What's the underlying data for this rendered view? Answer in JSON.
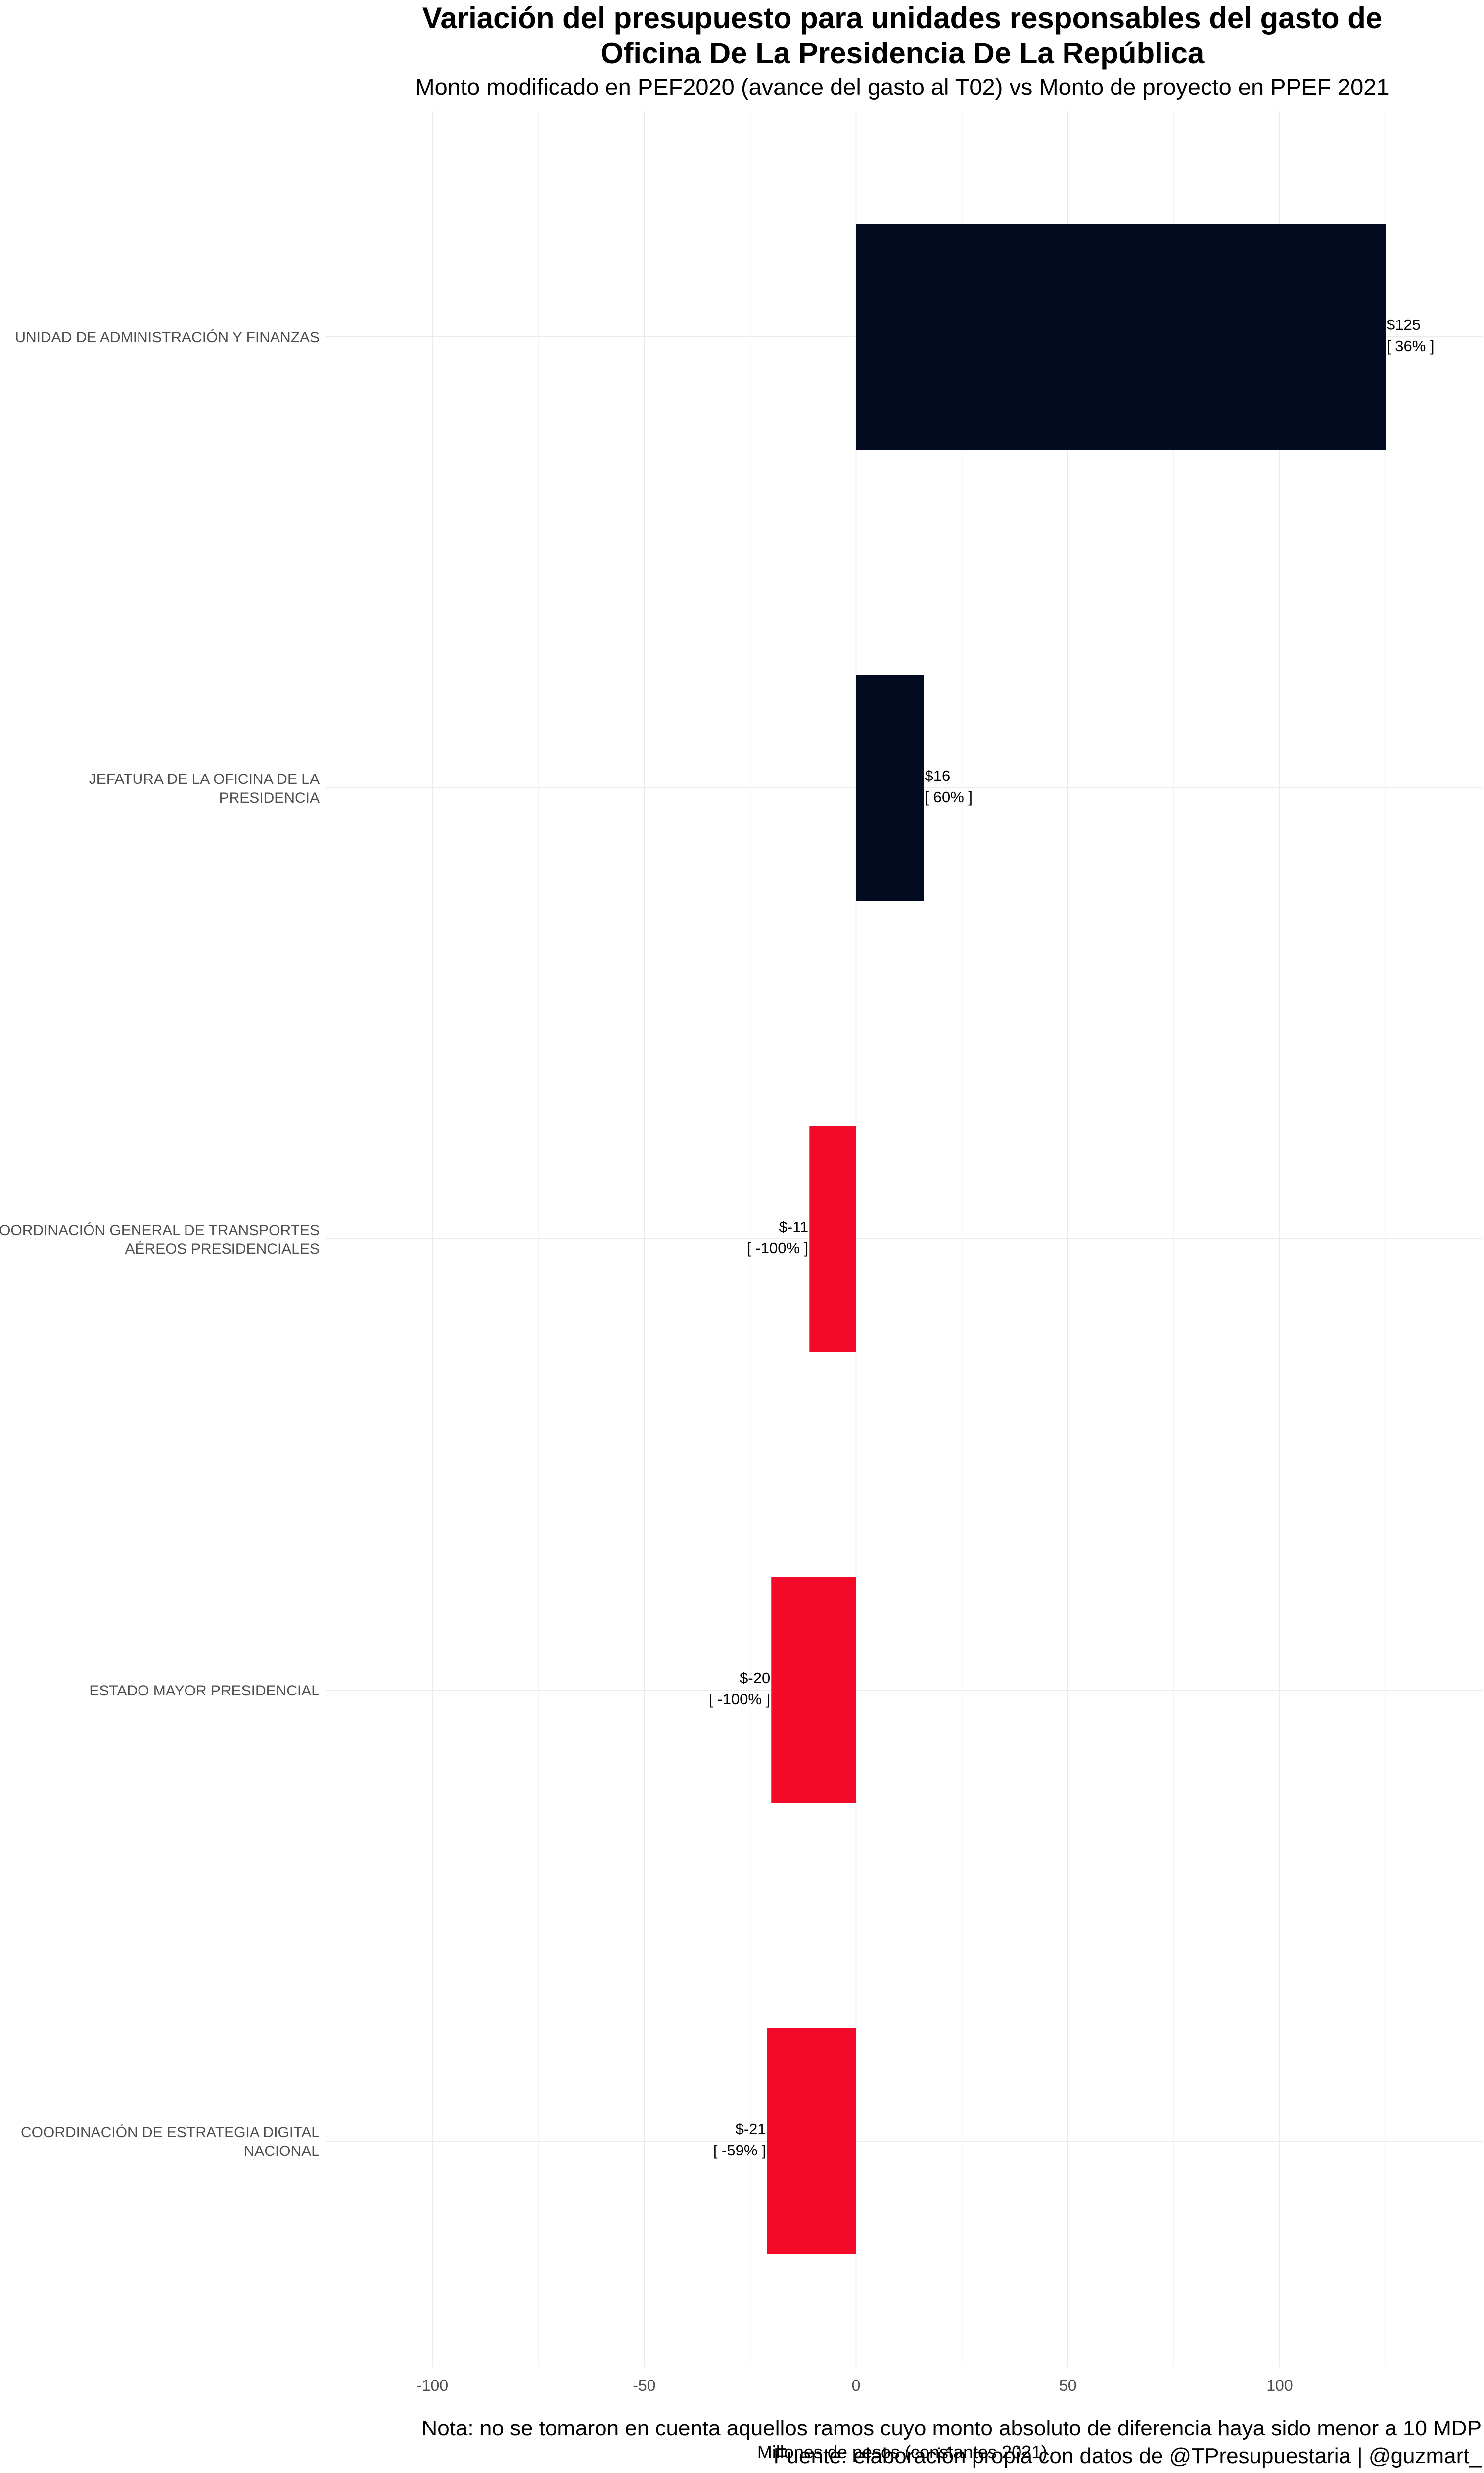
{
  "chart_data": {
    "type": "bar",
    "orientation": "horizontal",
    "title_lines": [
      "Variación del presupuesto para unidades responsables del gasto de",
      "Oficina De La Presidencia De La República"
    ],
    "subtitle": "Monto modificado en PEF2020 (avance del gasto al T02) vs Monto de proyecto en PPEF 2021",
    "xlabel": "Millones de pesos (constantes 2021)",
    "ylabel": "",
    "xlim": [
      -125,
      148
    ],
    "x_ticks": [
      -100,
      -50,
      0,
      50,
      100
    ],
    "x_tick_labels": [
      "-100",
      "-50",
      "0",
      "50",
      "100"
    ],
    "grid": true,
    "legend": "none",
    "categories": [
      [
        "UNIDAD DE ADMINISTRACIÓN Y FINANZAS"
      ],
      [
        "JEFATURA DE LA OFICINA DE LA",
        "PRESIDENCIA"
      ],
      [
        "COORDINACIÓN GENERAL DE TRANSPORTES",
        "AÉREOS PRESIDENCIALES"
      ],
      [
        "ESTADO MAYOR PRESIDENCIAL"
      ],
      [
        "COORDINACIÓN DE ESTRATEGIA DIGITAL",
        "NACIONAL"
      ]
    ],
    "values": [
      125,
      16,
      -11,
      -20,
      -21
    ],
    "value_labels": [
      "$125",
      "$16",
      "$-11",
      "$-20",
      "$-21"
    ],
    "percent_labels": [
      "[ 36% ]",
      "[ 60% ]",
      "[ -100% ]",
      "[ -100% ]",
      "[ -59% ]"
    ],
    "colors": {
      "positive": "#020b20",
      "negative": "#f20a28"
    }
  },
  "notes": {
    "nota": "Nota: no se tomaron en cuenta aquellos ramos cuyo monto absoluto de diferencia haya sido menor a 10 MDP",
    "fuente": "Fuente: elaboración propia con datos de @TPresupuestaria | @guzmart_"
  }
}
